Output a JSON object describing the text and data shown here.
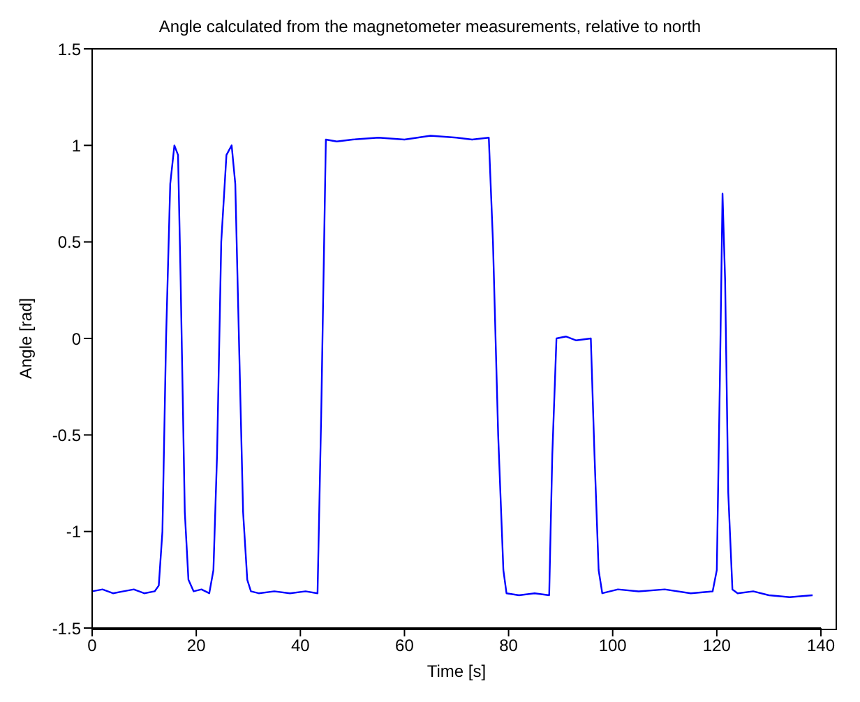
{
  "chart_data": {
    "type": "line",
    "title": "Angle calculated from the magnetometer measurements, relative to north",
    "xlabel": "Time [s]",
    "ylabel": "Angle [rad]",
    "xlim": [
      0,
      140
    ],
    "xticks": [
      0,
      20,
      40,
      60,
      80,
      100,
      120,
      140
    ],
    "ylim": [
      -1.5,
      1.5
    ],
    "yticks": [
      -1.5,
      -1,
      -0.5,
      0,
      0.5,
      1,
      1.5
    ],
    "grid": false,
    "marker": "none",
    "line_style": "solid",
    "series": [
      {
        "color": "#0000ff",
        "x": [
          0,
          2,
          4,
          6,
          8,
          10,
          12,
          12.8,
          13.5,
          14.2,
          15,
          15.8,
          16.5,
          17,
          17.8,
          18.5,
          19.5,
          21,
          22.5,
          23.3,
          24,
          24.8,
          25.8,
          26.8,
          27.5,
          28.2,
          29,
          29.8,
          30.5,
          32,
          35,
          38,
          41,
          43.3,
          44,
          44.9,
          47,
          50,
          55,
          60,
          65,
          70,
          73,
          76.2,
          77,
          78,
          79,
          79.6,
          82,
          85,
          87.8,
          88.4,
          89.2,
          91,
          93,
          95.8,
          96.5,
          97.3,
          98,
          101,
          105,
          110,
          115,
          119.2,
          120,
          120.6,
          121.1,
          121.6,
          122.2,
          123,
          124,
          127,
          130,
          134,
          138.4
        ],
        "values": [
          -1.31,
          -1.3,
          -1.32,
          -1.31,
          -1.3,
          -1.32,
          -1.31,
          -1.28,
          -1.0,
          0.0,
          0.8,
          1.0,
          0.95,
          0.3,
          -0.9,
          -1.25,
          -1.31,
          -1.3,
          -1.32,
          -1.2,
          -0.6,
          0.5,
          0.95,
          1.0,
          0.8,
          0.0,
          -0.9,
          -1.25,
          -1.31,
          -1.32,
          -1.31,
          -1.32,
          -1.31,
          -1.32,
          -0.4,
          1.03,
          1.02,
          1.03,
          1.04,
          1.03,
          1.05,
          1.04,
          1.03,
          1.04,
          0.5,
          -0.5,
          -1.2,
          -1.32,
          -1.33,
          -1.32,
          -1.33,
          -0.6,
          0.0,
          0.01,
          -0.01,
          0.0,
          -0.6,
          -1.2,
          -1.32,
          -1.3,
          -1.31,
          -1.3,
          -1.32,
          -1.31,
          -1.2,
          -0.2,
          0.75,
          0.3,
          -0.8,
          -1.3,
          -1.32,
          -1.31,
          -1.33,
          -1.34,
          -1.33
        ]
      }
    ]
  }
}
